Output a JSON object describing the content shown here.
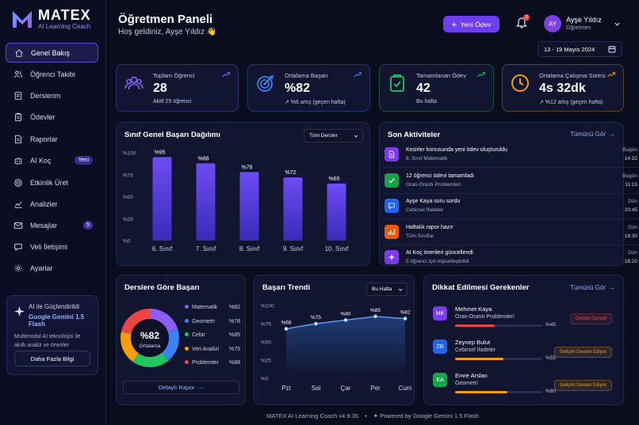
{
  "brand": {
    "name": "MATEX",
    "tagline": "AI Learning Coach"
  },
  "sidebar": {
    "items": [
      {
        "label": "Genel Bakış",
        "icon": "home-icon"
      },
      {
        "label": "Öğrenci Takibi",
        "icon": "users-icon"
      },
      {
        "label": "Derslerim",
        "icon": "book-icon"
      },
      {
        "label": "Ödevler",
        "icon": "clipboard-icon"
      },
      {
        "label": "Raporlar",
        "icon": "document-icon"
      },
      {
        "label": "AI Koç",
        "icon": "robot-icon",
        "badge": "Yeni"
      },
      {
        "label": "Etkinlik Üret",
        "icon": "target-icon"
      },
      {
        "label": "Analizler",
        "icon": "chart-line-icon"
      },
      {
        "label": "Mesajlar",
        "icon": "mail-icon",
        "badge": "5"
      },
      {
        "label": "Veli İletişimi",
        "icon": "chat-icon"
      },
      {
        "label": "Ayarlar",
        "icon": "gear-icon"
      }
    ],
    "promo": {
      "heading": "AI ile Güçlendirildi",
      "product": "Google Gemini 1.5 Flash",
      "text": "Multimodal AI teknolojisi ile akıllı analiz ve öneriler",
      "button": "Daha Fazla Bilgi"
    }
  },
  "header": {
    "title": "Öğretmen Paneli",
    "subtitle": "Hoş geldiniz, Ayşe Yıldız 👋",
    "new_button": "Yeni Ödev",
    "notifications": "3",
    "user": {
      "initials": "AY",
      "name": "Ayşe Yıldız",
      "role": "Öğretmen"
    },
    "date_range": "13 - 19 Mayıs 2024"
  },
  "stats": [
    {
      "label": "Toplam Öğrenci",
      "value": "28",
      "sub": "Aktif 25 öğrenci",
      "color": "#8b5cf6"
    },
    {
      "label": "Ortalama Başarı",
      "value": "%82",
      "sub": "↗ %6 artış (geçen hafta)",
      "color": "#3b82f6"
    },
    {
      "label": "Tamamlanan Ödev",
      "value": "42",
      "sub": "Bu hafta",
      "color": "#22c55e"
    },
    {
      "label": "Ortalama Çalışma Süresi",
      "value": "4s 32dk",
      "sub": "↗ %12 artış (geçen hafta)",
      "color": "#f59e0b"
    }
  ],
  "class_chart": {
    "title": "Sınıf Genel Başarı Dağılımı",
    "filter": "Tüm Dersler",
    "chart_data": {
      "type": "bar",
      "categories": [
        "6. Sınıf",
        "7. Sınıf",
        "8. Sınıf",
        "9. Sınıf",
        "10. Sınıf"
      ],
      "values": [
        95,
        88,
        78,
        72,
        65
      ],
      "value_labels": [
        "%95",
        "%88",
        "%78",
        "%72",
        "%65"
      ],
      "yticks": [
        "%100",
        "%75",
        "%50",
        "%25",
        "%0"
      ],
      "ylim": [
        0,
        100
      ]
    }
  },
  "activities": {
    "title": "Son Aktiviteler",
    "link": "Tümünü Gör",
    "items": [
      {
        "title": "Kesirler konusunda yeni ödev oluşturuldu",
        "desc": "8. Sınıf Matematik",
        "day": "Bugün",
        "time": "14:32",
        "color": "#7c3aed",
        "icon": "document-icon"
      },
      {
        "title": "12 öğrenci ödevi tamamladı",
        "desc": "Oran-Orantı Problemleri",
        "day": "Bugün",
        "time": "11:15",
        "color": "#16a34a",
        "icon": "check-icon"
      },
      {
        "title": "Ayşe Kaya soru sordu",
        "desc": "Cebirsel İfadeler",
        "day": "Dün",
        "time": "20:45",
        "color": "#2563eb",
        "icon": "chat-icon"
      },
      {
        "title": "Haftalık rapor hazır",
        "desc": "Tüm Sınıflar",
        "day": "Dün",
        "time": "18:30",
        "color": "#ea580c",
        "icon": "chart-icon"
      },
      {
        "title": "AI Koç önerileri güncellendi",
        "desc": "5 öğrenci için kişiselleştirildi",
        "day": "Dün",
        "time": "16:20",
        "color": "#7c3aed",
        "icon": "sparkle-icon"
      }
    ]
  },
  "subject_chart": {
    "title": "Derslere Göre Başarı",
    "center_value": "%82",
    "center_label": "Ortalama",
    "link": "Detaylı Rapor",
    "chart_data": {
      "type": "pie",
      "labels": [
        "Matematik",
        "Geometri",
        "Cebir",
        "Veri Analizi",
        "Problemler"
      ],
      "values": [
        82,
        78,
        85,
        75,
        88
      ],
      "value_labels": [
        "%82",
        "%78",
        "%85",
        "%75",
        "%88"
      ],
      "colors": [
        "#8b5cf6",
        "#3b82f6",
        "#22c55e",
        "#f59e0b",
        "#ef4444"
      ]
    }
  },
  "trend_chart": {
    "title": "Başarı Trendi",
    "filter": "Bu Hafta",
    "chart_data": {
      "type": "line",
      "categories": [
        "Pzt",
        "Sal",
        "Çar",
        "Per",
        "Cum"
      ],
      "values": [
        68,
        75,
        80,
        85,
        82
      ],
      "value_labels": [
        "%68",
        "%75",
        "%80",
        "%85",
        "%82"
      ],
      "yticks": [
        "%100",
        "%75",
        "%50",
        "%25",
        "%0"
      ],
      "ylim": [
        0,
        100
      ]
    }
  },
  "attention": {
    "title": "Dikkat Edilmesi Gerekenler",
    "link": "Tümünü Gör",
    "items": [
      {
        "initials": "MK",
        "name": "Mehmet Kaya",
        "topic": "Oran-Orantı Problemleri",
        "pct": 45,
        "pct_label": "%45",
        "badge": "Destek Gerekli",
        "color": "#ef4444",
        "av": "#7c3aed"
      },
      {
        "initials": "ZB",
        "name": "Zeynep Bulut",
        "topic": "Cebirsel İfadeler",
        "pct": 55,
        "pct_label": "%55",
        "badge": "Gelişim Devam Ediyor",
        "color": "#f59e0b",
        "av": "#2563eb"
      },
      {
        "initials": "EA",
        "name": "Emre Arslan",
        "topic": "Geometri",
        "pct": 60,
        "pct_label": "%60",
        "badge": "Gelişim Devam Ediyor",
        "color": "#f59e0b",
        "av": "#16a34a"
      }
    ]
  },
  "footer": {
    "version": "MATEX AI Learning Coach v4.9.35",
    "powered": "Powered by Google Gemini 1.5 Flash"
  }
}
